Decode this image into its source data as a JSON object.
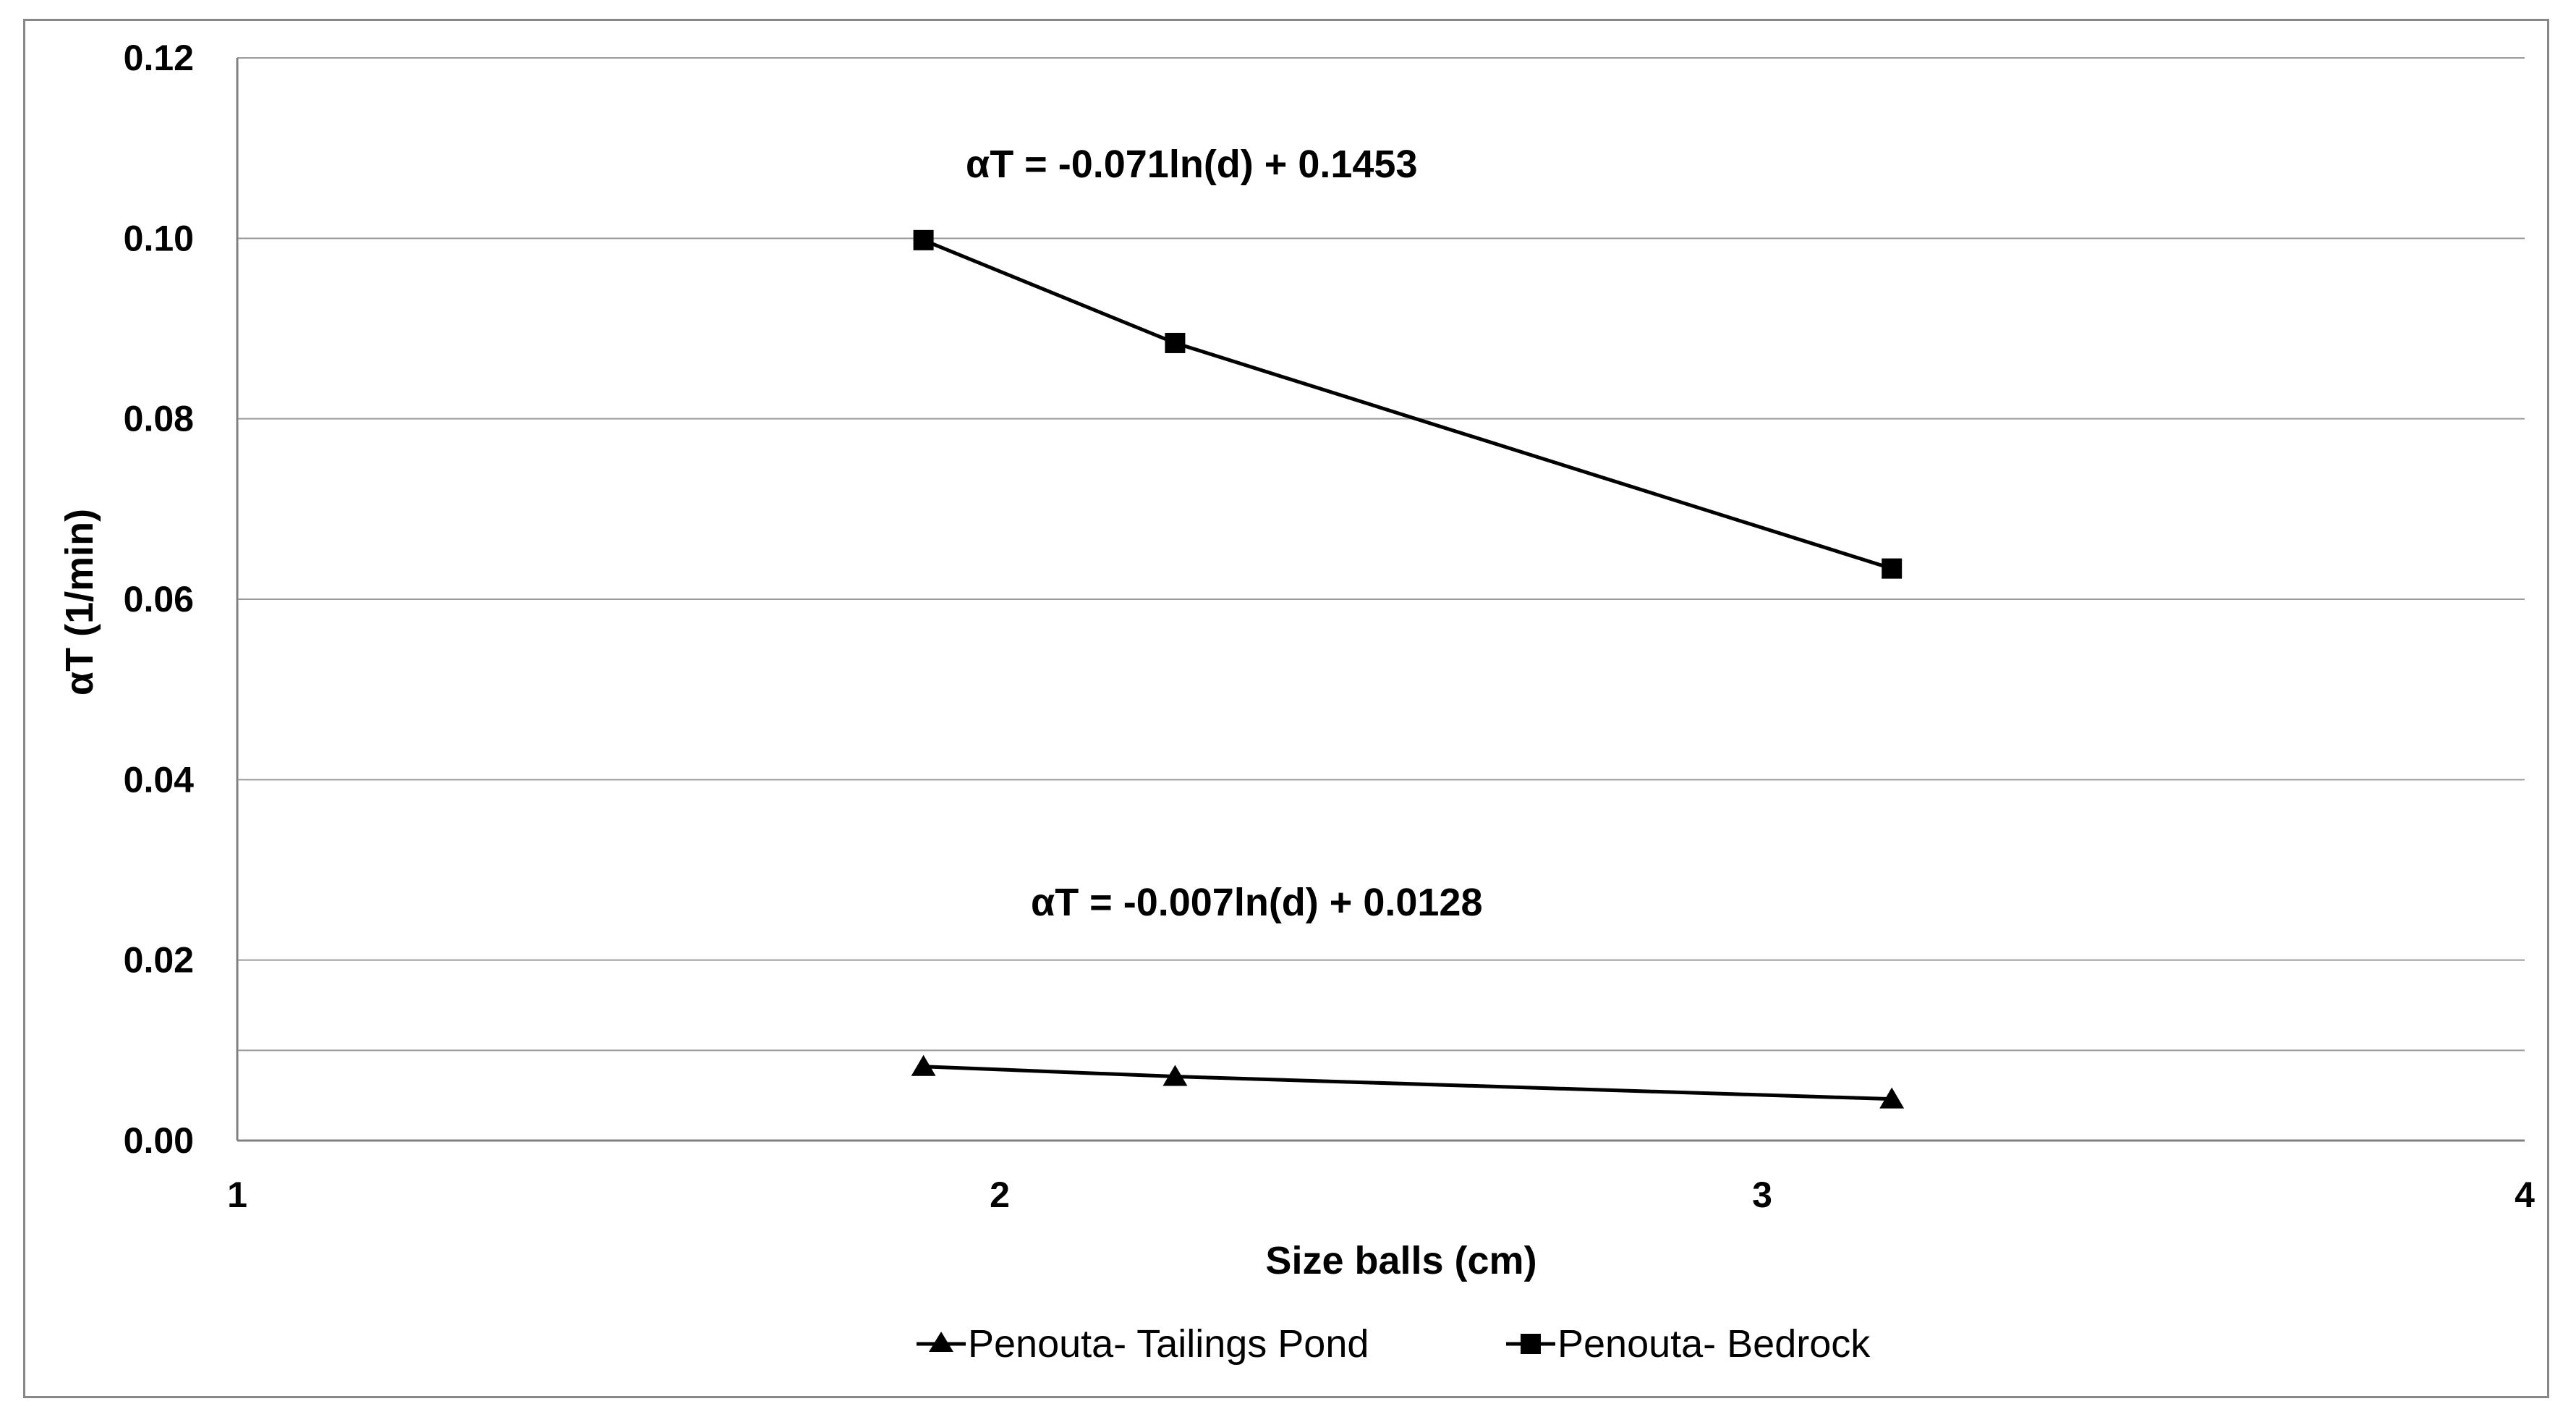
{
  "chart_data": {
    "type": "line",
    "title": "",
    "xlabel": "Size balls (cm)",
    "ylabel": "αT  (1/min)",
    "xlim": [
      1,
      4
    ],
    "ylim": [
      0,
      0.12
    ],
    "x_ticks": [
      "1",
      "2",
      "3",
      "4"
    ],
    "y_ticks": [
      "0.00",
      "0.02",
      "0.04",
      "0.06",
      "0.08",
      "0.10",
      "0.12"
    ],
    "grid": "horizontal",
    "extra_gridline_y": 0.01,
    "legend_position": "bottom",
    "series": [
      {
        "name": "Penouta- Tailings Pond",
        "marker": "triangle",
        "color": "#000000",
        "x": [
          1.9,
          2.23,
          3.17
        ],
        "y": [
          0.0082,
          0.0071,
          0.0046
        ]
      },
      {
        "name": "Penouta- Bedrock",
        "marker": "square",
        "color": "#000000",
        "x": [
          1.9,
          2.23,
          3.17
        ],
        "y": [
          0.0998,
          0.0884,
          0.0634
        ]
      }
    ],
    "annotations": [
      {
        "text": "αT = -0.071ln(d) + 0.1453",
        "series": "Penouta- Bedrock"
      },
      {
        "text": "αT  = -0.007ln(d) + 0.0128",
        "series": "Penouta- Tailings Pond"
      }
    ]
  }
}
